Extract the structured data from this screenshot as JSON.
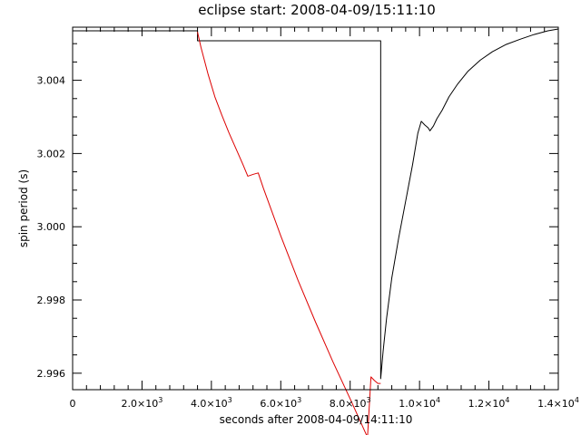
{
  "chart_data": {
    "type": "line",
    "title": "eclipse start: 2008-04-09/15:11:10",
    "xlabel": "seconds after 2008-04-09/14:11:10",
    "ylabel": "spin period (s)",
    "xlim": [
      0,
      14000
    ],
    "ylim": [
      2.99555,
      3.00545
    ],
    "x_ticks": [
      {
        "value": 0,
        "label": "0",
        "exp": ""
      },
      {
        "value": 2000,
        "label": "2.0×10",
        "exp": "3"
      },
      {
        "value": 4000,
        "label": "4.0×10",
        "exp": "3"
      },
      {
        "value": 6000,
        "label": "6.0×10",
        "exp": "3"
      },
      {
        "value": 8000,
        "label": "8.0×10",
        "exp": "3"
      },
      {
        "value": 10000,
        "label": "1.0×10",
        "exp": "4"
      },
      {
        "value": 12000,
        "label": "1.2×10",
        "exp": "4"
      },
      {
        "value": 14000,
        "label": "1.4×10",
        "exp": "4"
      }
    ],
    "y_ticks": [
      {
        "value": 2.996,
        "label": "2.996"
      },
      {
        "value": 2.998,
        "label": "2.998"
      },
      {
        "value": 3.0,
        "label": "3.000"
      },
      {
        "value": 3.002,
        "label": "3.002"
      },
      {
        "value": 3.004,
        "label": "3.004"
      }
    ],
    "grid": false,
    "series": [
      {
        "color": "#000000",
        "points": [
          [
            0,
            3.00535
          ],
          [
            3600,
            3.00535
          ],
          [
            3600,
            3.00508
          ],
          [
            8880,
            3.00508
          ],
          [
            8880,
            2.99585
          ],
          [
            8950,
            2.9966
          ],
          [
            9050,
            2.9975
          ],
          [
            9200,
            2.9986
          ],
          [
            9400,
            2.9997
          ],
          [
            9600,
            3.0007
          ],
          [
            9800,
            3.0017
          ],
          [
            9950,
            3.00255
          ],
          [
            10050,
            3.00288
          ],
          [
            10150,
            3.00278
          ],
          [
            10250,
            3.0027
          ],
          [
            10300,
            3.00262
          ],
          [
            10400,
            3.00275
          ],
          [
            10500,
            3.00295
          ],
          [
            10650,
            3.00318
          ],
          [
            10850,
            3.00355
          ],
          [
            11100,
            3.0039
          ],
          [
            11400,
            3.00425
          ],
          [
            11750,
            3.00455
          ],
          [
            12100,
            3.00478
          ],
          [
            12500,
            3.00498
          ],
          [
            12900,
            3.00512
          ],
          [
            13300,
            3.00525
          ],
          [
            13700,
            3.00535
          ],
          [
            14000,
            3.0054
          ]
        ]
      },
      {
        "color": "#dd0000",
        "points": [
          [
            3600,
            3.00532
          ],
          [
            3700,
            3.0049
          ],
          [
            3900,
            3.00418
          ],
          [
            4100,
            3.00355
          ],
          [
            4300,
            3.00305
          ],
          [
            4500,
            3.00258
          ],
          [
            4700,
            3.00215
          ],
          [
            4900,
            3.00172
          ],
          [
            5050,
            3.00138
          ],
          [
            5200,
            3.00143
          ],
          [
            5350,
            3.00147
          ],
          [
            5500,
            3.00105
          ],
          [
            6000,
            2.99975
          ],
          [
            6500,
            2.99853
          ],
          [
            7000,
            2.9974
          ],
          [
            7500,
            2.99632
          ],
          [
            8000,
            2.9953
          ],
          [
            8500,
            2.99425
          ],
          [
            8600,
            2.9959
          ],
          [
            8700,
            2.9958
          ],
          [
            8800,
            2.99572
          ],
          [
            8880,
            2.99572
          ]
        ]
      }
    ]
  }
}
